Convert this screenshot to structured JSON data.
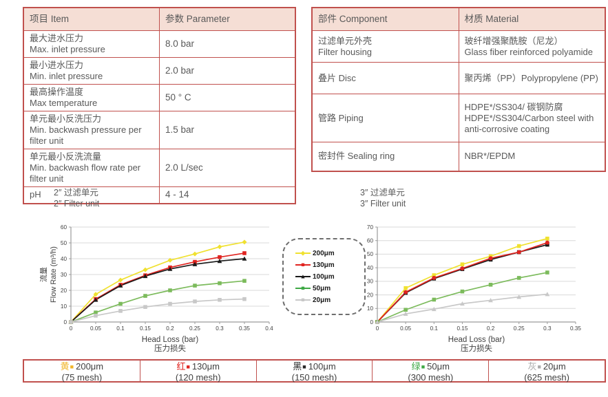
{
  "colors": {
    "table_border": "#c0504d",
    "table_header_bg": "#f5ded5",
    "body_text": "#595959",
    "chart_yellow": "#f0e130",
    "chart_red": "#e02420",
    "chart_black": "#1a1a1a",
    "chart_green": "#7cbb5c",
    "chart_gray": "#c8c8c8",
    "legend_yellow": "#f0b428",
    "legend_red": "#e02420",
    "legend_black": "#262626",
    "legend_green": "#3ea845",
    "legend_gray": "#ababab"
  },
  "spec_table": {
    "headers": {
      "item": "项目 Item",
      "parameter": "参数 Parameter"
    },
    "rows": [
      {
        "zh": "最大进水压力",
        "en": "Max. inlet pressure",
        "value": "8.0 bar"
      },
      {
        "zh": "最小进水压力",
        "en": "Min. inlet pressure",
        "value": "2.0 bar"
      },
      {
        "zh": "最高操作温度",
        "en": "Max temperature",
        "value": "50 ° C"
      },
      {
        "zh": "单元最小反洗压力",
        "en": "Min. backwash pressure per filter unit",
        "value": "1.5 bar"
      },
      {
        "zh": "单元最小反洗流量",
        "en": "Min. backwash flow rate per filter unit",
        "value": "2.0 L/sec"
      },
      {
        "zh": "pH",
        "en": "",
        "value": "4 - 14"
      }
    ]
  },
  "material_table": {
    "headers": {
      "component": "部件 Component",
      "material": "材质 Material"
    },
    "rows": [
      {
        "zh": "过滤单元外壳",
        "en": "Filter housing",
        "material_zh": "玻纤增强聚酰胺（尼龙）",
        "material_en": "Glass fiber reinforced polyamide"
      },
      {
        "zh": "叠片 Disc",
        "en": "",
        "material_zh": "聚丙烯（PP）Polypropylene (PP)",
        "material_en": ""
      },
      {
        "zh": "管路 Piping",
        "en": "",
        "material_zh": "HDPE*/SS304/ 碳钢防腐",
        "material_en": "HDPE*/SS304/Carbon steel with anti-corrosive coating"
      },
      {
        "zh": "密封件 Sealing ring",
        "en": "",
        "material_zh": "NBR*/EPDM",
        "material_en": ""
      }
    ]
  },
  "chart_data": [
    {
      "type": "line",
      "title_zh": "2″ 过滤单元",
      "title_en": "2″ Filter unit",
      "xlabel": "Head Loss (bar)",
      "xlabel_zh": "压力损失",
      "ylabel_zh": "流量",
      "ylabel": "Flow Rate (m³/h)",
      "xlim": [
        0,
        0.4
      ],
      "ylim": [
        0,
        60
      ],
      "ytick": 10,
      "grid": "horizontal",
      "xticks": [
        0,
        0.05,
        0.1,
        0.15,
        0.2,
        0.25,
        0.3,
        0.35,
        0.4
      ],
      "x": [
        0,
        0.05,
        0.1,
        0.15,
        0.2,
        0.25,
        0.3,
        0.35
      ],
      "series": [
        {
          "name": "200μm",
          "color": "#f0e130",
          "marker": "diamond",
          "values": [
            0,
            17.5,
            26.5,
            33,
            39,
            43,
            47.5,
            50.5
          ]
        },
        {
          "name": "130μm",
          "color": "#e02420",
          "marker": "square",
          "values": [
            0,
            14.5,
            23.5,
            29.5,
            34.5,
            38,
            41,
            43.5
          ]
        },
        {
          "name": "100μm",
          "color": "#1a1a1a",
          "marker": "triangle",
          "values": [
            0,
            14,
            23,
            29,
            33.5,
            36.5,
            38.5,
            40
          ]
        },
        {
          "name": "50μm",
          "color": "#7cbb5c",
          "marker": "square",
          "values": [
            0,
            6,
            11.5,
            16.5,
            20,
            23,
            24.5,
            26
          ]
        },
        {
          "name": "20μm",
          "color": "#c8c8c8",
          "marker": "square",
          "values": [
            0,
            4,
            7,
            9.5,
            11.5,
            13,
            14,
            14.5
          ]
        }
      ]
    },
    {
      "type": "line",
      "title_zh": "3″ 过滤单元",
      "title_en": "3″ Filter unit",
      "xlabel": "Head Loss (bar)",
      "xlabel_zh": "压力损失",
      "ylabel_zh": "流量",
      "ylabel": "Flow Rate (m³/h)",
      "xlim": [
        0,
        0.35
      ],
      "ylim": [
        0,
        70
      ],
      "ytick": 10,
      "grid": "horizontal",
      "xticks": [
        0,
        0.05,
        0.1,
        0.15,
        0.2,
        0.25,
        0.3,
        0.35
      ],
      "x": [
        0,
        0.05,
        0.1,
        0.15,
        0.2,
        0.25,
        0.3
      ],
      "series": [
        {
          "name": "200μm",
          "color": "#f0e130",
          "marker": "square",
          "values": [
            0,
            25,
            34.5,
            42.5,
            48.5,
            56,
            61.5
          ]
        },
        {
          "name": "100μm",
          "color": "#1a1a1a",
          "marker": "square",
          "values": [
            0,
            21.5,
            32,
            39,
            46,
            51.5,
            57
          ]
        },
        {
          "name": "130μm",
          "color": "#e02420",
          "marker": "circle",
          "values": [
            0,
            22,
            32.5,
            39.5,
            47,
            51.5,
            58.5
          ]
        },
        {
          "name": "50μm",
          "color": "#7cbb5c",
          "marker": "square",
          "values": [
            0,
            9,
            16.5,
            22.5,
            27.5,
            32.5,
            36.5
          ]
        },
        {
          "name": "20μm",
          "color": "#c8c8c8",
          "marker": "triangle",
          "values": [
            0,
            6,
            9.5,
            13.5,
            16,
            18.5,
            20.5
          ]
        }
      ]
    }
  ],
  "chart_legend": {
    "items": [
      {
        "label": "200μm",
        "glyph": "◆",
        "color": "#f0e130"
      },
      {
        "label": "130μm",
        "glyph": "■",
        "color": "#e02420"
      },
      {
        "label": "100μm",
        "glyph": "▲",
        "color": "#1a1a1a"
      },
      {
        "label": "50μm",
        "glyph": "■",
        "color": "#3ea845"
      },
      {
        "label": "20μm",
        "glyph": "■",
        "color": "#c8c8c8"
      }
    ]
  },
  "bottom_legend": {
    "items": [
      {
        "color_word": "黄",
        "glyph": "■",
        "label": "200μm",
        "mesh": "(75 mesh)",
        "color": "#f0b428"
      },
      {
        "color_word": "红",
        "glyph": "■",
        "label": "130μm",
        "mesh": "(120 mesh)",
        "color": "#e02420"
      },
      {
        "color_word": "黑",
        "glyph": "■",
        "label": "100μm",
        "mesh": "(150 mesh)",
        "color": "#262626"
      },
      {
        "color_word": "绿",
        "glyph": "■",
        "label": "50μm",
        "mesh": "(300 mesh)",
        "color": "#3ea845"
      },
      {
        "color_word": "灰",
        "glyph": "■",
        "label": "20μm",
        "mesh": "(625 mesh)",
        "color": "#ababab"
      }
    ]
  }
}
